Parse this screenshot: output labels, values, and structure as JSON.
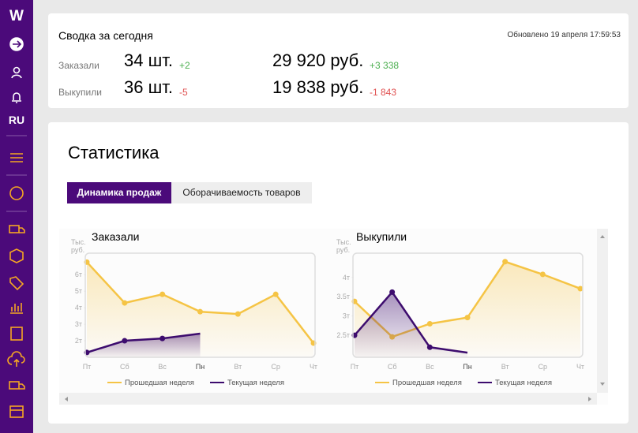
{
  "sidebar": {
    "logo": "W",
    "lang": "RU"
  },
  "summary": {
    "title": "Сводка за сегодня",
    "updated": "Обновлено 19 апреля 17:59:53",
    "rows": [
      {
        "label": "Заказали",
        "count": "34 шт.",
        "count_delta": "+2",
        "sum": "29 920 руб.",
        "sum_delta": "+3 338"
      },
      {
        "label": "Выкупили",
        "count": "36 шт.",
        "count_delta": "-5",
        "sum": "19 838 руб.",
        "sum_delta": "-1 843"
      }
    ]
  },
  "stats": {
    "title": "Статистика",
    "tabs": [
      "Динамика продаж",
      "Оборачиваемость товаров"
    ]
  },
  "chart_data": [
    {
      "type": "line",
      "title": "Заказали",
      "y_label": "Тыс. руб.",
      "categories": [
        "Пт",
        "Сб",
        "Вс",
        "Пн",
        "Вт",
        "Ср",
        "Чт"
      ],
      "series": [
        {
          "name": "Прошедшая неделя",
          "color": "#f5c445",
          "values": [
            6.76,
            4.29,
            4.81,
            3.76,
            3.62,
            4.81,
            1.86
          ]
        },
        {
          "name": "Текущая неделя",
          "color": "#3d0c6e",
          "values": [
            1.29,
            2.0,
            2.14,
            2.43,
            null,
            null,
            null
          ]
        }
      ],
      "ylim": [
        1,
        7.3
      ],
      "yticks": [
        {
          "value": 2,
          "label": "2т"
        },
        {
          "value": 3,
          "label": "3т"
        },
        {
          "value": 4,
          "label": "4т"
        },
        {
          "value": 5,
          "label": "5т"
        },
        {
          "value": 6,
          "label": "6т"
        }
      ]
    },
    {
      "type": "line",
      "title": "Выкупили",
      "y_label": "Тыс. руб.",
      "categories": [
        "Пт",
        "Сб",
        "Вс",
        "Пн",
        "Вт",
        "Ср",
        "Чт"
      ],
      "series": [
        {
          "name": "Прошедшая неделя",
          "color": "#f5c445",
          "values": [
            3.38,
            2.46,
            2.8,
            2.96,
            4.41,
            4.08,
            3.71
          ]
        },
        {
          "name": "Текущая неделя",
          "color": "#3d0c6e",
          "values": [
            2.5,
            3.62,
            2.19,
            2.05,
            null,
            null,
            null
          ]
        }
      ],
      "ylim": [
        1.93,
        4.63
      ],
      "yticks": [
        {
          "value": 2.5,
          "label": "2.5т"
        },
        {
          "value": 3,
          "label": "3т"
        },
        {
          "value": 3.5,
          "label": "3.5т"
        },
        {
          "value": 4,
          "label": "4т"
        }
      ]
    }
  ]
}
